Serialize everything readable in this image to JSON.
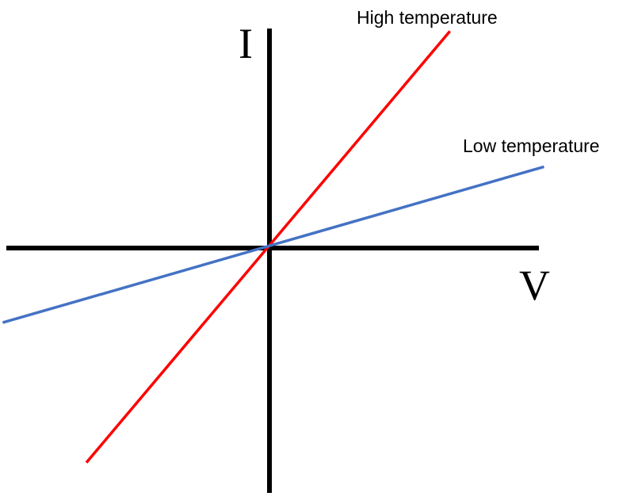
{
  "chart_data": {
    "type": "line",
    "xlabel": "V",
    "ylabel": "I",
    "title": "",
    "grid": false,
    "xlim": [
      -10,
      10
    ],
    "ylim": [
      -10,
      10
    ],
    "x": [
      -10,
      7.1
    ],
    "series": [
      {
        "name": "High temperature",
        "color": "#ff0000",
        "x": [
          -7.0,
          6.9
        ],
        "y": [
          -9.5,
          9.6
        ]
      },
      {
        "name": "Low temperature",
        "color": "#4472c4",
        "x": [
          -10.2,
          10.5
        ],
        "y": [
          -3.3,
          3.6
        ]
      }
    ],
    "axis_color": "#000000"
  }
}
